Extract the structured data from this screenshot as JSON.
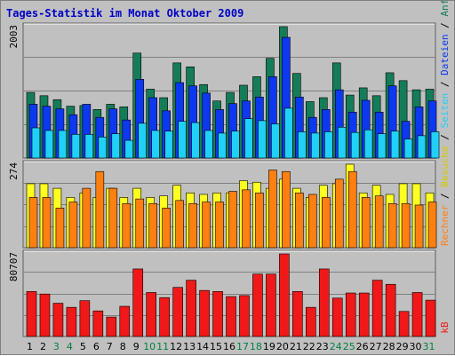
{
  "chart_data": {
    "type": "bar",
    "title": "Tages-Statistik im Monat Oktober 2009",
    "categories": [
      "1",
      "2",
      "3",
      "4",
      "5",
      "6",
      "7",
      "8",
      "9",
      "10",
      "11",
      "12",
      "13",
      "14",
      "15",
      "16",
      "17",
      "18",
      "19",
      "20",
      "21",
      "22",
      "23",
      "24",
      "25",
      "26",
      "27",
      "28",
      "29",
      "30",
      "31"
    ],
    "weekend_days": [
      "3",
      "4",
      "10",
      "11",
      "17",
      "18",
      "24",
      "25",
      "31"
    ],
    "panels": [
      {
        "max_label": "2003",
        "ymax": 2003,
        "series": [
          {
            "name": "Anfragen",
            "color": "#157c58",
            "values": [
              1000,
              950,
              890,
              790,
              800,
              740,
              820,
              780,
              1600,
              1050,
              920,
              1450,
              1390,
              1120,
              870,
              1000,
              1110,
              1240,
              1520,
              2003,
              1290,
              860,
              920,
              1450,
              960,
              1070,
              950,
              1300,
              1180,
              1040,
              1050
            ]
          },
          {
            "name": "Dateien",
            "color": "#0c38f0",
            "values": [
              820,
              790,
              750,
              660,
              820,
              620,
              750,
              580,
              1200,
              920,
              720,
              1150,
              1100,
              990,
              740,
              830,
              870,
              930,
              1240,
              1840,
              930,
              620,
              740,
              1040,
              700,
              880,
              700,
              1100,
              560,
              780,
              870
            ]
          },
          {
            "name": "Seiten",
            "color": "#20d0f8",
            "values": [
              460,
              420,
              420,
              360,
              360,
              320,
              370,
              270,
              530,
              420,
              410,
              560,
              540,
              420,
              380,
              410,
              600,
              570,
              520,
              760,
              400,
              380,
              400,
              470,
              390,
              430,
              370,
              410,
              290,
              340,
              400
            ]
          }
        ]
      },
      {
        "max_label": "274",
        "ymax": 274,
        "series": [
          {
            "name": "Besuche",
            "color": "#ffff20",
            "values": [
              210,
              210,
              195,
              165,
              180,
              165,
              195,
              165,
              195,
              165,
              170,
              205,
              180,
              175,
              180,
              180,
              220,
              215,
              195,
              225,
              195,
              165,
              205,
              210,
              274,
              180,
              205,
              175,
              210,
              210,
              180
            ]
          },
          {
            "name": "Rechner",
            "color": "#ff8010",
            "values": [
              165,
              165,
              130,
              150,
              195,
              250,
              195,
              145,
              160,
              145,
              130,
              155,
              145,
              150,
              150,
              185,
              190,
              180,
              255,
              250,
              180,
              175,
              165,
              225,
              250,
              165,
              170,
              145,
              145,
              140,
              150
            ]
          }
        ]
      },
      {
        "max_label": "80707",
        "ymax": 80707,
        "series": [
          {
            "name": "kB",
            "color": "#f01818",
            "values": [
              44000,
              41500,
              32500,
              28500,
              35000,
              25000,
              19000,
              29500,
              66000,
              43000,
              38000,
              48000,
              55000,
              45000,
              44000,
              39000,
              40000,
              61000,
              61000,
              80707,
              44000,
              28500,
              66000,
              37500,
              42500,
              42500,
              55000,
              51000,
              24500,
              43000,
              35500
            ]
          }
        ]
      }
    ],
    "legend": [
      {
        "text": "Anfragen",
        "color": "#157c58"
      },
      {
        "text": " / ",
        "color": "#000000"
      },
      {
        "text": "Dateien",
        "color": "#0c38f0"
      },
      {
        "text": " / ",
        "color": "#000000"
      },
      {
        "text": "Seiten",
        "color": "#20d0f8"
      },
      {
        "text": " / ",
        "color": "#000000"
      },
      {
        "text": "Besuche",
        "color": "#d8c800"
      },
      {
        "text": " / ",
        "color": "#000000"
      },
      {
        "text": "Rechner",
        "color": "#ff8010"
      },
      {
        "text": "kB",
        "color": "#f01818"
      }
    ],
    "colors": {
      "weekday_tick": "#000000",
      "weekend_tick": "#008040",
      "panel_bg": "#c0c0c0",
      "grid": "#808080"
    }
  }
}
